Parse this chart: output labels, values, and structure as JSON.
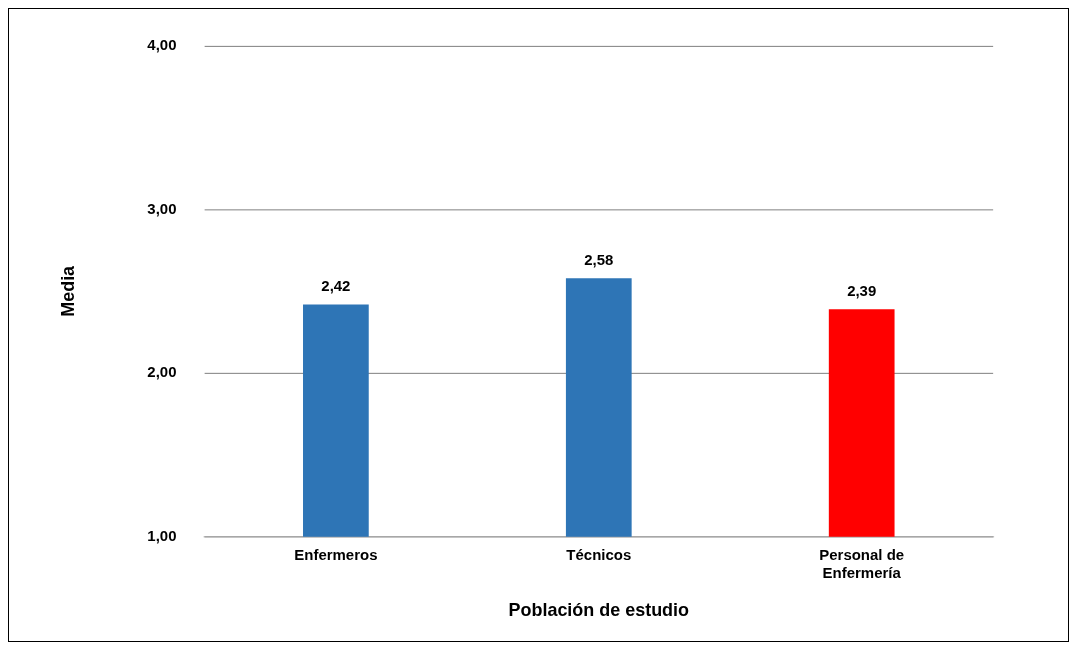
{
  "chart_data": {
    "type": "bar",
    "xlabel": "Población de estudio",
    "ylabel": "Media",
    "categories": [
      "Enfermeros",
      "Técnicos",
      "Personal de Enfermería"
    ],
    "values": [
      2.42,
      2.58,
      2.39
    ],
    "colors": [
      "#2e75b6",
      "#2e75b6",
      "#ff0000"
    ],
    "value_labels": [
      "2,42",
      "2,58",
      "2,39"
    ],
    "ylim": [
      1,
      4
    ],
    "yticks": [
      {
        "value": 1,
        "label": "1,00"
      },
      {
        "value": 2,
        "label": "2,00"
      },
      {
        "value": 3,
        "label": "3,00"
      },
      {
        "value": 4,
        "label": "4,00"
      }
    ],
    "grid": "y",
    "legend": false
  }
}
